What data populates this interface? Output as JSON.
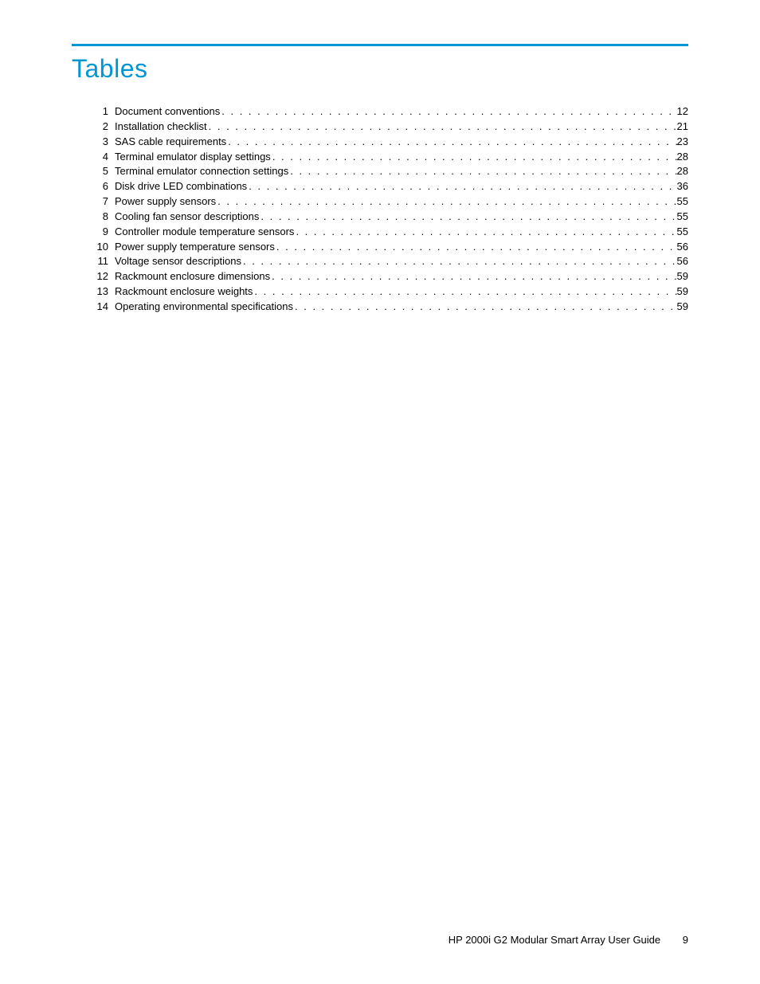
{
  "heading": "Tables",
  "accent_color": "#0096d6",
  "text_color": "#000000",
  "background_color": "#ffffff",
  "toc": {
    "entries": [
      {
        "num": "1",
        "label": "Document conventions",
        "page": "12"
      },
      {
        "num": "2",
        "label": "Installation checklist",
        "page": "21"
      },
      {
        "num": "3",
        "label": "SAS cable requirements",
        "page": "23"
      },
      {
        "num": "4",
        "label": "Terminal emulator display settings",
        "page": "28"
      },
      {
        "num": "5",
        "label": "Terminal emulator connection settings",
        "page": "28"
      },
      {
        "num": "6",
        "label": "Disk drive LED combinations",
        "page": "36"
      },
      {
        "num": "7",
        "label": "Power supply sensors",
        "page": "55"
      },
      {
        "num": "8",
        "label": "Cooling fan sensor descriptions",
        "page": "55"
      },
      {
        "num": "9",
        "label": "Controller module temperature sensors",
        "page": "55"
      },
      {
        "num": "10",
        "label": "Power supply temperature sensors",
        "page": "56"
      },
      {
        "num": "11",
        "label": "Voltage sensor descriptions",
        "page": "56"
      },
      {
        "num": "12",
        "label": "Rackmount enclosure dimensions",
        "page": "59"
      },
      {
        "num": "13",
        "label": "Rackmount enclosure weights",
        "page": "59"
      },
      {
        "num": "14",
        "label": "Operating environmental specifications",
        "page": "59"
      }
    ]
  },
  "footer": {
    "doc_title": "HP 2000i G2 Modular Smart Array User Guide",
    "page_number": "9"
  }
}
